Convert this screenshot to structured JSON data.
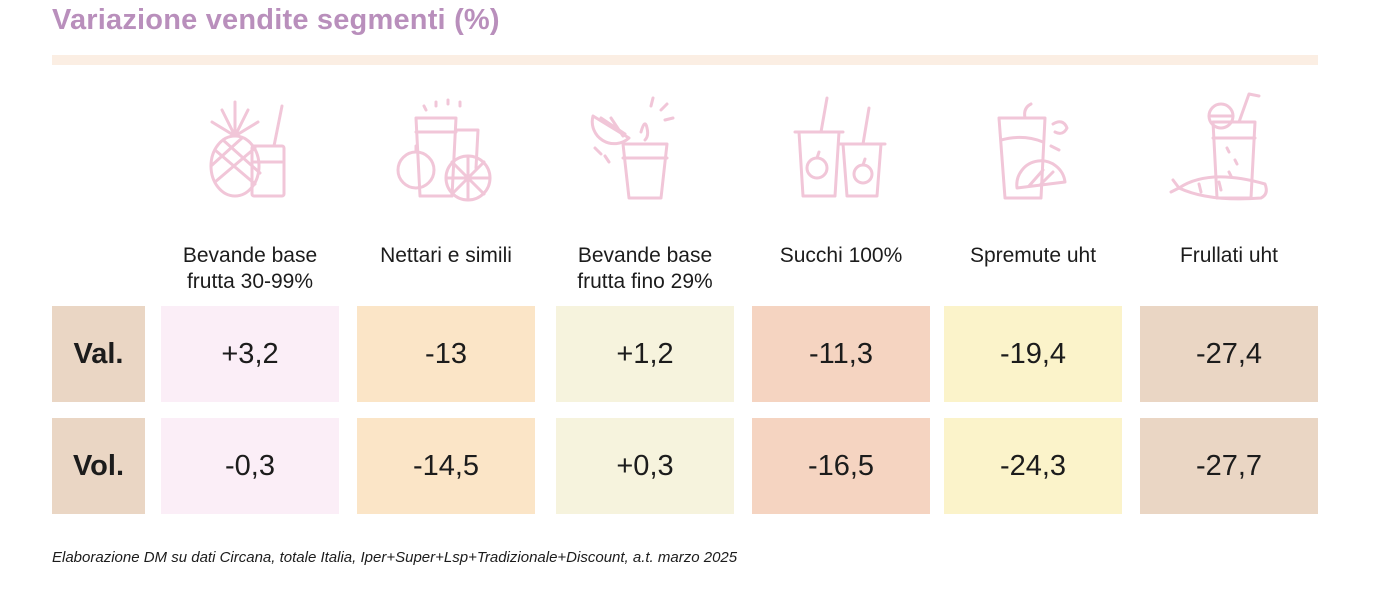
{
  "title": "Variazione vendite segmenti (%)",
  "source": "Elaborazione DM su dati Circana, totale Italia, Iper+Super+Lsp+Tradizionale+Discount, a.t. marzo 2025",
  "chart_data": {
    "type": "table",
    "title": "Variazione vendite segmenti (%)",
    "categories": [
      "Bevande base frutta 30-99%",
      "Nettari e simili",
      "Bevande base frutta fino 29%",
      "Succhi 100%",
      "Spremute uht",
      "Frullati uht"
    ],
    "category_lines": [
      [
        "Bevande base",
        "frutta 30-99%"
      ],
      [
        "Nettari e simili"
      ],
      [
        "Bevande base",
        "frutta fino 29%"
      ],
      [
        "Succhi 100%"
      ],
      [
        "Spremute uht"
      ],
      [
        "Frullati uht"
      ]
    ],
    "icons": [
      "pineapple-drink-icon",
      "juice-fruits-icon",
      "orange-squeeze-icon",
      "juice-cups-icon",
      "orange-juice-icon",
      "carrot-smoothie-icon"
    ],
    "column_colors": [
      "#fbeef7",
      "#fbe5c7",
      "#f6f3dd",
      "#f5d4c1",
      "#fbf3ca",
      "#ead6c4"
    ],
    "series": [
      {
        "name": "Val.",
        "values": [
          3.2,
          -13,
          1.2,
          -11.3,
          -19.4,
          -27.4
        ],
        "labels": [
          "+3,2",
          "-13",
          "+1,2",
          "-11,3",
          "-19,4",
          "-27,4"
        ]
      },
      {
        "name": "Vol.",
        "values": [
          -0.3,
          -14.5,
          0.3,
          -16.5,
          -24.3,
          -27.7
        ],
        "labels": [
          "-0,3",
          "-14,5",
          "+0,3",
          "-16,5",
          "-24,3",
          "-27,7"
        ]
      }
    ]
  }
}
